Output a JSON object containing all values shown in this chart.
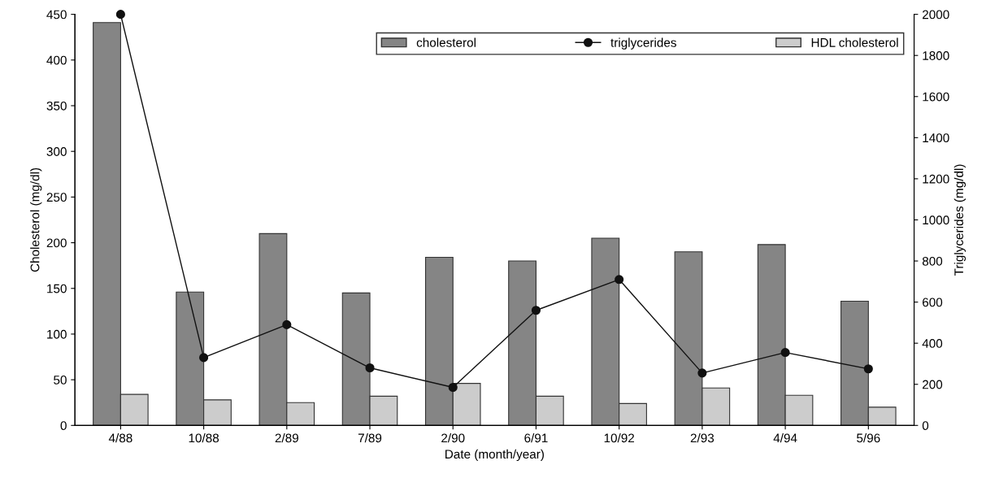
{
  "chart_data": {
    "type": "bar",
    "xlabel": "Date (month/year)",
    "ylabel": "Cholesterol (mg/dl)",
    "y2label": "Triglycerides (mg/dl)",
    "categories": [
      "4/88",
      "10/88",
      "2/89",
      "7/89",
      "2/90",
      "6/91",
      "10/92",
      "2/93",
      "4/94",
      "5/96"
    ],
    "series": [
      {
        "name": "cholesterol",
        "color": "#858585",
        "values": [
          441,
          146,
          210,
          145,
          184,
          180,
          205,
          190,
          198,
          136
        ]
      },
      {
        "name": "triglycerides",
        "type": "line",
        "axis": "y2",
        "color": "#111111",
        "marker": "circle",
        "values": [
          2000,
          330,
          490,
          280,
          185,
          560,
          710,
          255,
          355,
          275
        ]
      },
      {
        "name": "HDL cholesterol",
        "color": "#cccccc",
        "values": [
          34,
          28,
          25,
          32,
          46,
          32,
          24,
          41,
          33,
          20
        ]
      }
    ],
    "ylim": [
      0,
      450
    ],
    "yticks": [
      0,
      50,
      100,
      150,
      200,
      250,
      300,
      350,
      400,
      450
    ],
    "y2lim": [
      0,
      2000
    ],
    "y2ticks": [
      0,
      200,
      400,
      600,
      800,
      1000,
      1200,
      1400,
      1600,
      1800,
      2000
    ],
    "legend": "top right",
    "grid": false
  }
}
